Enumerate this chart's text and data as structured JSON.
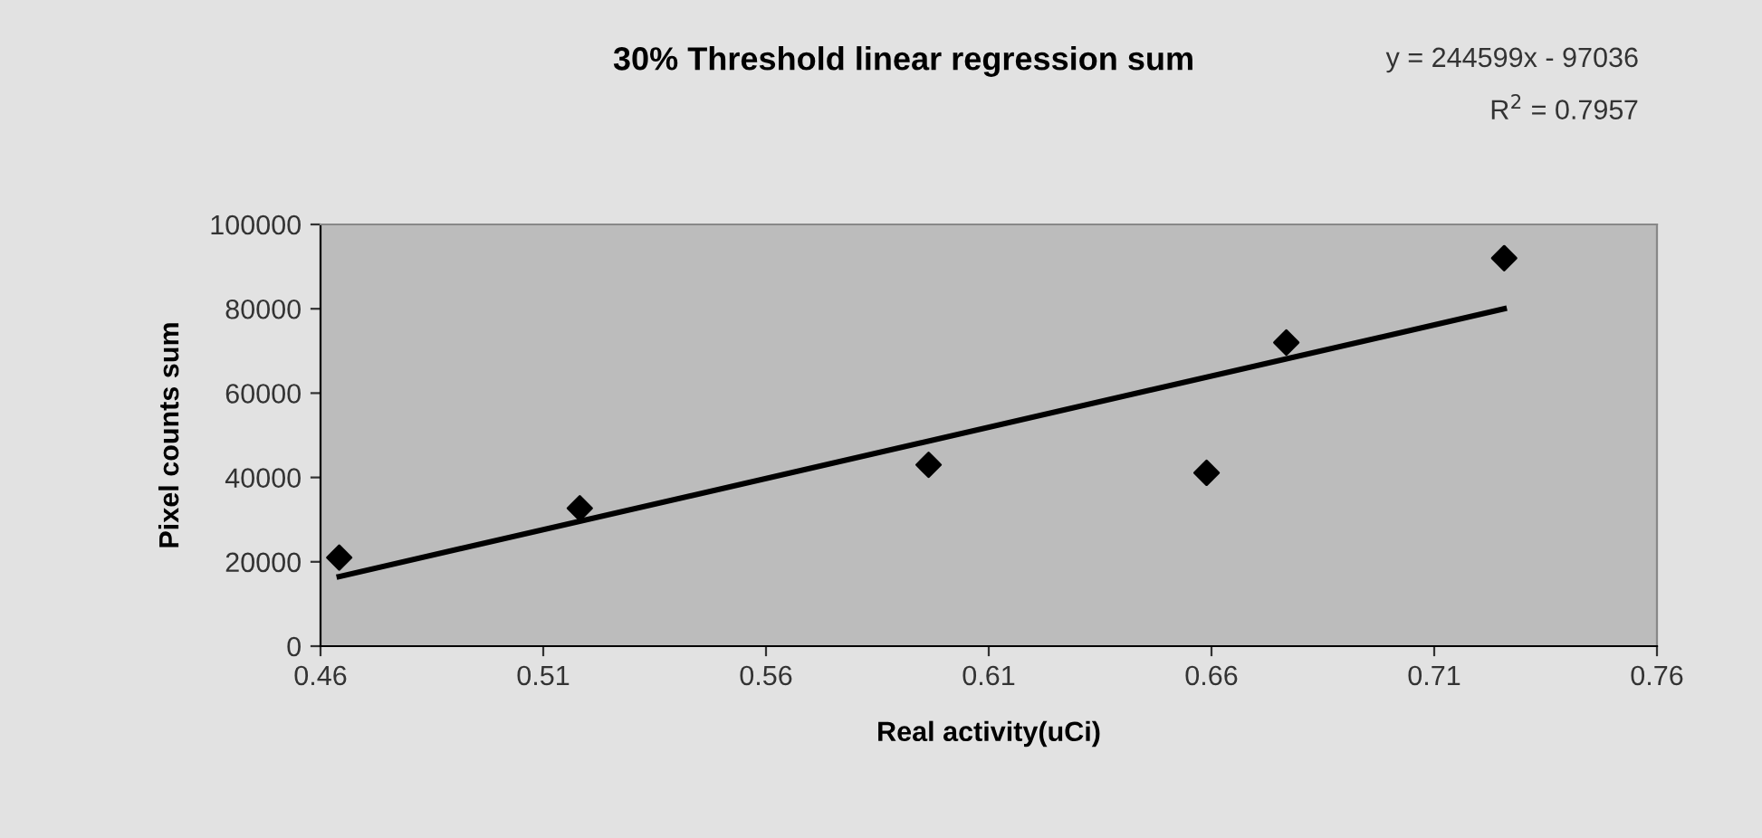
{
  "chart_data": {
    "type": "scatter",
    "title": "30% Threshold linear regression sum",
    "xlabel": "Real activity(uCi)",
    "ylabel": "Pixel counts sum",
    "annotations": [
      "y = 244599x - 97036",
      "R$^{2}$ = 0.7957"
    ],
    "series": [
      {
        "color": "#000000",
        "marker": "diamond",
        "x": [
          0.4642,
          0.5182,
          0.5965,
          0.6589,
          0.6768,
          0.7257
        ],
        "values": [
          21000,
          32700,
          43000,
          41100,
          72000,
          92000
        ]
      },
      {
        "type": "line",
        "color": "#000000",
        "marker": "none",
        "line_style": "solid",
        "x": [
          0.4642,
          0.7257
        ],
        "values": [
          16500,
          80000
        ]
      }
    ],
    "xlim": [
      0.46,
      0.76
    ],
    "xticks": [
      0.46,
      0.51,
      0.56,
      0.61,
      0.66,
      0.71,
      0.76
    ],
    "ylim": [
      0,
      100000
    ],
    "yticks": [
      0,
      20000,
      40000,
      60000,
      80000,
      100000
    ],
    "grid": false,
    "legend": false
  }
}
